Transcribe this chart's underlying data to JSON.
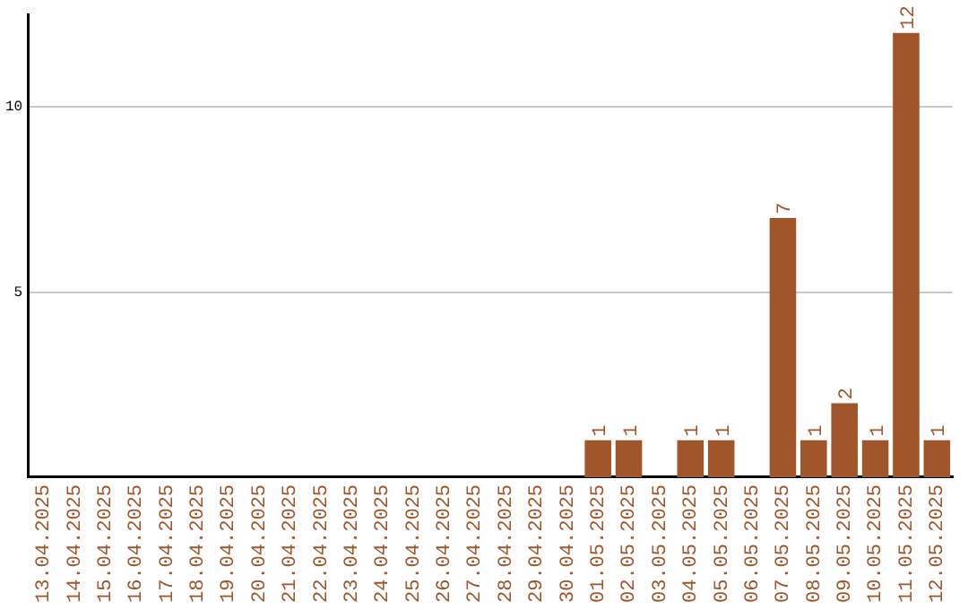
{
  "chart_data": {
    "type": "bar",
    "categories": [
      "13.04.2025",
      "14.04.2025",
      "15.04.2025",
      "16.04.2025",
      "17.04.2025",
      "18.04.2025",
      "19.04.2025",
      "20.04.2025",
      "21.04.2025",
      "22.04.2025",
      "23.04.2025",
      "24.04.2025",
      "25.04.2025",
      "26.04.2025",
      "27.04.2025",
      "28.04.2025",
      "29.04.2025",
      "30.04.2025",
      "01.05.2025",
      "02.05.2025",
      "03.05.2025",
      "04.05.2025",
      "05.05.2025",
      "06.05.2025",
      "07.05.2025",
      "08.05.2025",
      "09.05.2025",
      "10.05.2025",
      "11.05.2025",
      "12.05.2025"
    ],
    "values": [
      0,
      0,
      0,
      0,
      0,
      0,
      0,
      0,
      0,
      0,
      0,
      0,
      0,
      0,
      0,
      0,
      0,
      0,
      1,
      1,
      0,
      1,
      1,
      0,
      7,
      1,
      2,
      1,
      12,
      1
    ],
    "value_labels": [
      null,
      null,
      null,
      null,
      null,
      null,
      null,
      null,
      null,
      null,
      null,
      null,
      null,
      null,
      null,
      null,
      null,
      null,
      "1",
      "1",
      null,
      "1",
      "1",
      null,
      "7",
      "1",
      "2",
      "1",
      "12",
      "1"
    ],
    "color": "#a0562a",
    "ylim": [
      0,
      12.5
    ],
    "yticks": [
      5,
      10
    ],
    "grid": "y"
  }
}
